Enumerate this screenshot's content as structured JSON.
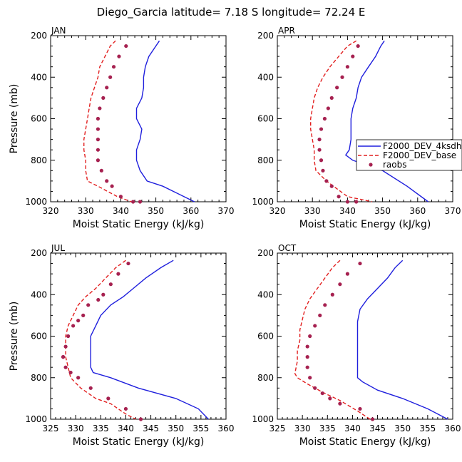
{
  "figure_title": "Diego_Garcia  latitude= 7.18 S longitude= 72.24 E",
  "colors": {
    "model_4ks": "#1f1fdd",
    "model_base": "#e21f1f",
    "raobs": "#a62150"
  },
  "legend": {
    "entries": [
      {
        "name": "F2000_DEV_4ksdh",
        "style": "solid",
        "color": "#1f1fdd"
      },
      {
        "name": "F2000_DEV_base",
        "style": "dashed",
        "color": "#e21f1f"
      },
      {
        "name": "raobs",
        "style": "dots",
        "color": "#a62150"
      }
    ]
  },
  "chart_data": [
    {
      "type": "line",
      "title": "JAN",
      "xlabel": "Moist Static Energy (kJ/kg)",
      "ylabel": "Pressure (mb)",
      "xlim": [
        320,
        370
      ],
      "ylim": [
        1000,
        200
      ],
      "xticks": [
        320,
        330,
        340,
        350,
        360,
        370
      ],
      "yticks": [
        200,
        400,
        600,
        800,
        1000
      ],
      "series": [
        {
          "name": "F2000_DEV_4ksdh",
          "x": [
            351,
            350,
            348,
            347,
            346.5,
            346.5,
            346,
            344.5,
            344.5,
            346,
            345.5,
            344.5,
            344.5,
            345.5,
            347.5,
            352,
            358,
            361
          ],
          "y": [
            225,
            250,
            300,
            350,
            400,
            450,
            500,
            550,
            600,
            650,
            700,
            750,
            800,
            850,
            900,
            925,
            975,
            1000
          ]
        },
        {
          "name": "F2000_DEV_base",
          "x": [
            338.5,
            337,
            335.5,
            334,
            333.5,
            332.5,
            331.5,
            331,
            330.5,
            330,
            329.5,
            329.5,
            330,
            330,
            330.5,
            333.5,
            339,
            343
          ],
          "y": [
            225,
            250,
            300,
            350,
            400,
            450,
            500,
            550,
            600,
            650,
            700,
            750,
            800,
            850,
            900,
            925,
            975,
            1000
          ]
        },
        {
          "name": "raobs",
          "x": [
            341.5,
            339.5,
            338,
            337,
            336,
            335,
            334,
            333.5,
            333.5,
            333.5,
            333.5,
            333.5,
            334.5,
            336,
            337.5,
            340,
            343.5,
            345.5
          ],
          "y": [
            250,
            300,
            350,
            400,
            450,
            500,
            550,
            600,
            650,
            700,
            750,
            800,
            850,
            900,
            925,
            975,
            1000,
            1000
          ]
        }
      ]
    },
    {
      "type": "line",
      "title": "APR",
      "xlabel": "Moist Static Energy (kJ/kg)",
      "ylabel": "",
      "xlim": [
        320,
        370
      ],
      "ylim": [
        1000,
        200
      ],
      "xticks": [
        320,
        330,
        340,
        350,
        360,
        370
      ],
      "yticks": [
        200,
        400,
        600,
        800,
        1000
      ],
      "series": [
        {
          "name": "F2000_DEV_4ksdh",
          "x": [
            350.5,
            349.5,
            348,
            346,
            344,
            343,
            342.5,
            341.5,
            341,
            341,
            341,
            340.5,
            339.5,
            341.5,
            350,
            357,
            363
          ],
          "y": [
            225,
            250,
            300,
            350,
            400,
            450,
            500,
            550,
            600,
            650,
            700,
            750,
            775,
            800,
            850,
            925,
            1000
          ]
        },
        {
          "name": "F2000_DEV_base",
          "x": [
            342.5,
            340,
            337.5,
            335,
            333,
            331.5,
            330.5,
            330,
            329.5,
            329.5,
            330,
            330.5,
            330.5,
            331,
            334,
            340,
            347
          ],
          "y": [
            225,
            250,
            300,
            350,
            400,
            450,
            500,
            550,
            600,
            650,
            700,
            750,
            800,
            850,
            900,
            975,
            1000
          ]
        },
        {
          "name": "raobs",
          "x": [
            343,
            341.5,
            340,
            338.5,
            337,
            335.5,
            334.5,
            333.5,
            332.5,
            332,
            332,
            332.5,
            333,
            334,
            335.5,
            337.5,
            340,
            342.5
          ],
          "y": [
            250,
            300,
            350,
            400,
            450,
            500,
            550,
            600,
            650,
            700,
            750,
            800,
            850,
            900,
            925,
            975,
            1000,
            1000
          ]
        }
      ]
    },
    {
      "type": "line",
      "title": "JUL",
      "xlabel": "Moist Static Energy (kJ/kg)",
      "ylabel": "Pressure (mb)",
      "xlim": [
        325,
        360
      ],
      "ylim": [
        1000,
        200
      ],
      "xticks": [
        325,
        330,
        335,
        340,
        345,
        350,
        355,
        360
      ],
      "yticks": [
        200,
        400,
        600,
        800,
        1000
      ],
      "series": [
        {
          "name": "F2000_DEV_4ksdh",
          "x": [
            349.5,
            347,
            344,
            341.5,
            339.5,
            337,
            335,
            334,
            333,
            333,
            333,
            333,
            333.5,
            337,
            342.5,
            350,
            354.5,
            356.5
          ],
          "y": [
            235,
            270,
            320,
            370,
            410,
            450,
            500,
            550,
            600,
            650,
            700,
            750,
            775,
            800,
            850,
            900,
            950,
            1000
          ]
        },
        {
          "name": "F2000_DEV_base",
          "x": [
            340,
            338,
            336,
            334,
            332,
            330.5,
            329.5,
            328.5,
            328,
            328,
            328,
            328.5,
            329,
            331,
            334,
            337,
            340,
            342
          ],
          "y": [
            235,
            270,
            320,
            370,
            410,
            450,
            500,
            550,
            600,
            650,
            700,
            750,
            800,
            850,
            900,
            925,
            975,
            1000
          ]
        },
        {
          "name": "raobs",
          "x": [
            340.5,
            338.5,
            337,
            335.5,
            334.5,
            332.5,
            331.5,
            330.5,
            329.5,
            328.5,
            328,
            327.5,
            327.5,
            328,
            329,
            330.5,
            333,
            336.5,
            340,
            343
          ],
          "y": [
            250,
            300,
            350,
            400,
            425,
            450,
            500,
            525,
            550,
            600,
            650,
            700,
            700,
            750,
            775,
            800,
            850,
            900,
            950,
            1000
          ]
        }
      ]
    },
    {
      "type": "line",
      "title": "OCT",
      "xlabel": "Moist Static Energy (kJ/kg)",
      "ylabel": "",
      "xlim": [
        325,
        360
      ],
      "ylim": [
        1000,
        200
      ],
      "xticks": [
        325,
        330,
        335,
        340,
        345,
        350,
        355,
        360
      ],
      "yticks": [
        200,
        400,
        600,
        800,
        1000
      ],
      "series": [
        {
          "name": "F2000_DEV_4ksdh",
          "x": [
            350,
            348.5,
            347,
            345,
            343,
            341.5,
            341,
            341,
            341,
            341,
            341,
            341,
            341,
            341,
            342,
            345,
            350,
            355,
            359
          ],
          "y": [
            235,
            270,
            320,
            370,
            420,
            470,
            530,
            580,
            630,
            680,
            730,
            780,
            800,
            800,
            820,
            860,
            900,
            950,
            1000
          ]
        },
        {
          "name": "F2000_DEV_base",
          "x": [
            337.5,
            336,
            334.5,
            333,
            331.5,
            330.5,
            330,
            329.5,
            329.5,
            329,
            329,
            328.5,
            329,
            331,
            334,
            337.5,
            341,
            343.5
          ],
          "y": [
            235,
            270,
            320,
            370,
            420,
            470,
            520,
            570,
            620,
            670,
            720,
            780,
            800,
            830,
            870,
            910,
            960,
            1000
          ]
        },
        {
          "name": "raobs",
          "x": [
            341.5,
            339,
            337.5,
            336,
            334.5,
            333.5,
            332.5,
            331.5,
            331,
            331,
            331,
            331.5,
            332.5,
            334,
            335.5,
            337.5,
            341.5,
            344
          ],
          "y": [
            250,
            300,
            350,
            400,
            450,
            500,
            550,
            600,
            650,
            700,
            750,
            800,
            850,
            875,
            900,
            925,
            950,
            1000
          ]
        }
      ]
    }
  ]
}
